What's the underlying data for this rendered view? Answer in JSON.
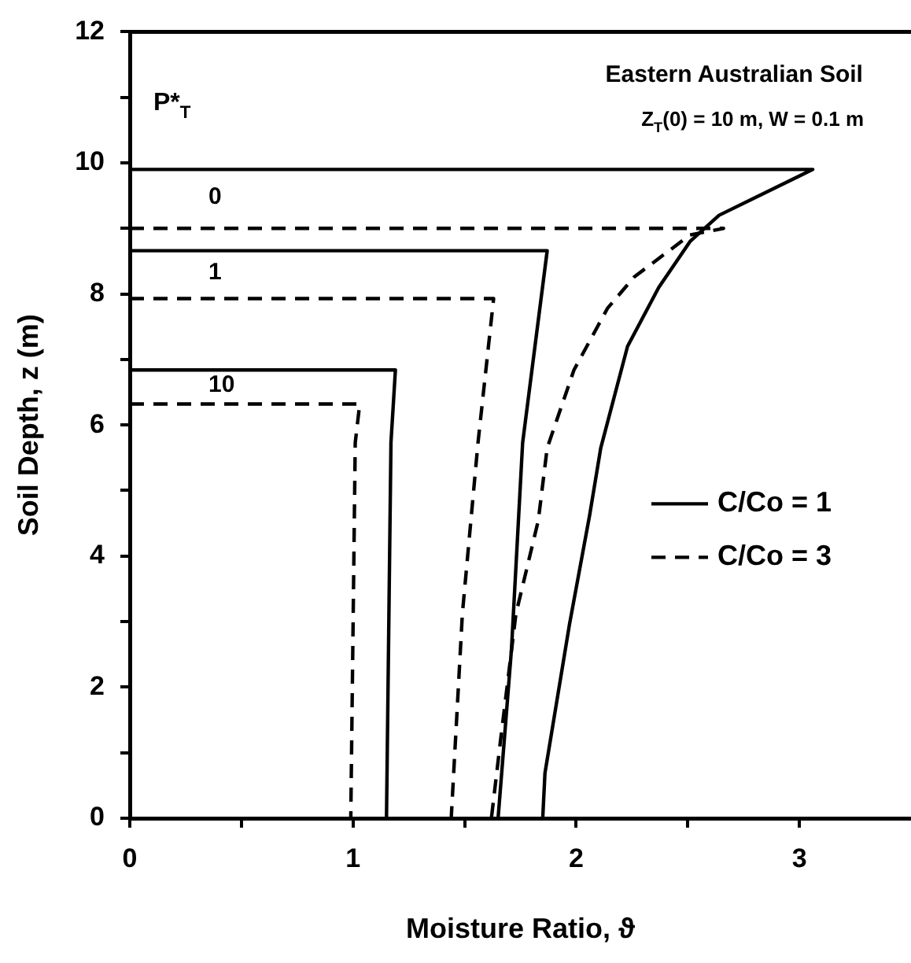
{
  "chart_data": {
    "type": "line",
    "xlabel": "Moisture Ratio, ϑ",
    "ylabel": "Soil Depth, z (m)",
    "xlim": [
      0,
      3.5
    ],
    "xticks": [
      0,
      {
        "value": 0.5,
        "label": null
      },
      1,
      {
        "value": 1.5,
        "label": null
      },
      2,
      {
        "value": 2.5,
        "label": null
      },
      3
    ],
    "ylim": [
      0,
      12
    ],
    "yticks": [
      0,
      {
        "value": 1,
        "label": null
      },
      2,
      {
        "value": 3,
        "label": null
      },
      4,
      {
        "value": 5,
        "label": null
      },
      6,
      {
        "value": 7,
        "label": null
      },
      8,
      {
        "value": 9,
        "label": null
      },
      10,
      {
        "value": 11,
        "label": null
      },
      12
    ],
    "grid": false,
    "legend": "right",
    "marker": "none",
    "series": [
      {
        "name": "C/Co = 1",
        "color": "#000000",
        "line_style": "solid",
        "x": [
          0,
          3.06,
          2.64,
          2.51,
          2.37,
          2.23,
          2.11,
          2.06,
          1.97,
          1.86,
          1.85
        ],
        "values": [
          9.9,
          9.9,
          9.2,
          8.8,
          8.1,
          7.2,
          5.65,
          4.62,
          2.96,
          0.69,
          0
        ]
      },
      {
        "name": "C/Co = 3",
        "color": "#000000",
        "line_style": "dashed",
        "x": [
          0,
          2.66,
          2.51,
          2.26,
          2.14,
          1.99,
          1.87,
          1.83,
          1.73,
          1.66,
          1.62
        ],
        "values": [
          9.0,
          9.0,
          8.9,
          8.26,
          7.78,
          6.84,
          5.65,
          4.54,
          3.12,
          1.16,
          0
        ]
      },
      {
        "color": "#000000",
        "line_style": "solid",
        "x": [
          0,
          1.87,
          1.76,
          1.71,
          1.65
        ],
        "values": [
          8.66,
          8.66,
          5.73,
          2.58,
          0
        ]
      },
      {
        "color": "#000000",
        "line_style": "dashed",
        "x": [
          0,
          1.63,
          1.56,
          1.49,
          1.44
        ],
        "values": [
          7.93,
          7.93,
          5.73,
          3.12,
          0
        ]
      },
      {
        "color": "#000000",
        "line_style": "solid",
        "x": [
          0,
          1.19,
          1.17,
          1.15
        ],
        "values": [
          6.84,
          6.84,
          5.73,
          0
        ]
      },
      {
        "color": "#000000",
        "line_style": "dashed",
        "x": [
          0,
          1.03,
          1.01,
          0.99
        ],
        "values": [
          6.32,
          6.32,
          5.73,
          0
        ]
      }
    ],
    "annotations": [
      "Eastern Australian Soil",
      "Z$_{T}$(0) = 10 m, W = 0.1 m",
      "P*$_{T}$",
      "0",
      "1",
      "10"
    ]
  }
}
